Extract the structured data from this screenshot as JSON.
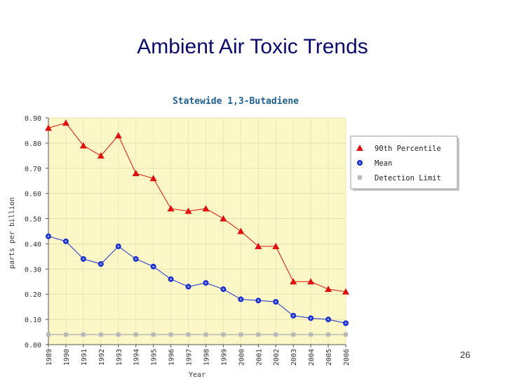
{
  "slide": {
    "title": "Ambient Air Toxic Trends",
    "page_number": "26"
  },
  "chart_data": {
    "type": "line",
    "title": "Statewide 1,3-Butadiene",
    "xlabel": "Year",
    "ylabel": "parts per billion",
    "ylim": [
      0,
      0.9
    ],
    "yticks": [
      "0.00",
      "0.10",
      "0.20",
      "0.30",
      "0.40",
      "0.50",
      "0.60",
      "0.70",
      "0.80",
      "0.90"
    ],
    "categories": [
      "1989",
      "1990",
      "1991",
      "1992",
      "1993",
      "1994",
      "1995",
      "1996",
      "1997",
      "1998",
      "1999",
      "2000",
      "2001",
      "2002",
      "2003",
      "2004",
      "2005",
      "2006"
    ],
    "grid": true,
    "legend_position": "right",
    "background_color": "#fcf7c6",
    "series": [
      {
        "name": "90th Percentile",
        "marker": "triangle",
        "color": "#e01010",
        "values": [
          0.86,
          0.88,
          0.79,
          0.75,
          0.83,
          0.68,
          0.66,
          0.54,
          0.53,
          0.54,
          0.5,
          0.45,
          0.39,
          0.39,
          0.25,
          0.25,
          0.22,
          0.21
        ]
      },
      {
        "name": "Mean",
        "marker": "circle",
        "color": "#1a2fd0",
        "values": [
          0.43,
          0.41,
          0.34,
          0.32,
          0.39,
          0.34,
          0.31,
          0.26,
          0.23,
          0.245,
          0.22,
          0.18,
          0.175,
          0.17,
          0.115,
          0.105,
          0.1,
          0.085
        ]
      },
      {
        "name": "Detection Limit",
        "marker": "square",
        "color": "#b8b8b8",
        "values": [
          0.04,
          0.04,
          0.04,
          0.04,
          0.04,
          0.04,
          0.04,
          0.04,
          0.04,
          0.04,
          0.04,
          0.04,
          0.04,
          0.04,
          0.04,
          0.04,
          0.04,
          0.04
        ]
      }
    ]
  }
}
